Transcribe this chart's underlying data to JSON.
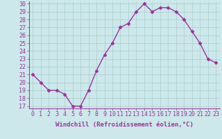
{
  "x": [
    0,
    1,
    2,
    3,
    4,
    5,
    6,
    7,
    8,
    9,
    10,
    11,
    12,
    13,
    14,
    15,
    16,
    17,
    18,
    19,
    20,
    21,
    22,
    23
  ],
  "y": [
    21,
    20,
    19,
    19,
    18.5,
    17,
    17,
    19,
    21.5,
    23.5,
    25,
    27,
    27.5,
    29,
    30,
    29,
    29.5,
    29.5,
    29,
    28,
    26.5,
    25,
    23,
    22.5
  ],
  "line_color": "#993399",
  "marker_color": "#993399",
  "bg_color": "#cce8ea",
  "grid_color": "#aacccc",
  "xlabel": "Windchill (Refroidissement éolien,°C)",
  "ylim_min": 17,
  "ylim_max": 30,
  "xlim_min": 0,
  "xlim_max": 23,
  "yticks": [
    17,
    18,
    19,
    20,
    21,
    22,
    23,
    24,
    25,
    26,
    27,
    28,
    29,
    30
  ],
  "xticks": [
    0,
    1,
    2,
    3,
    4,
    5,
    6,
    7,
    8,
    9,
    10,
    11,
    12,
    13,
    14,
    15,
    16,
    17,
    18,
    19,
    20,
    21,
    22,
    23
  ],
  "xlabel_fontsize": 6.5,
  "tick_fontsize": 6.0,
  "line_width": 1.0,
  "marker_size": 2.5
}
